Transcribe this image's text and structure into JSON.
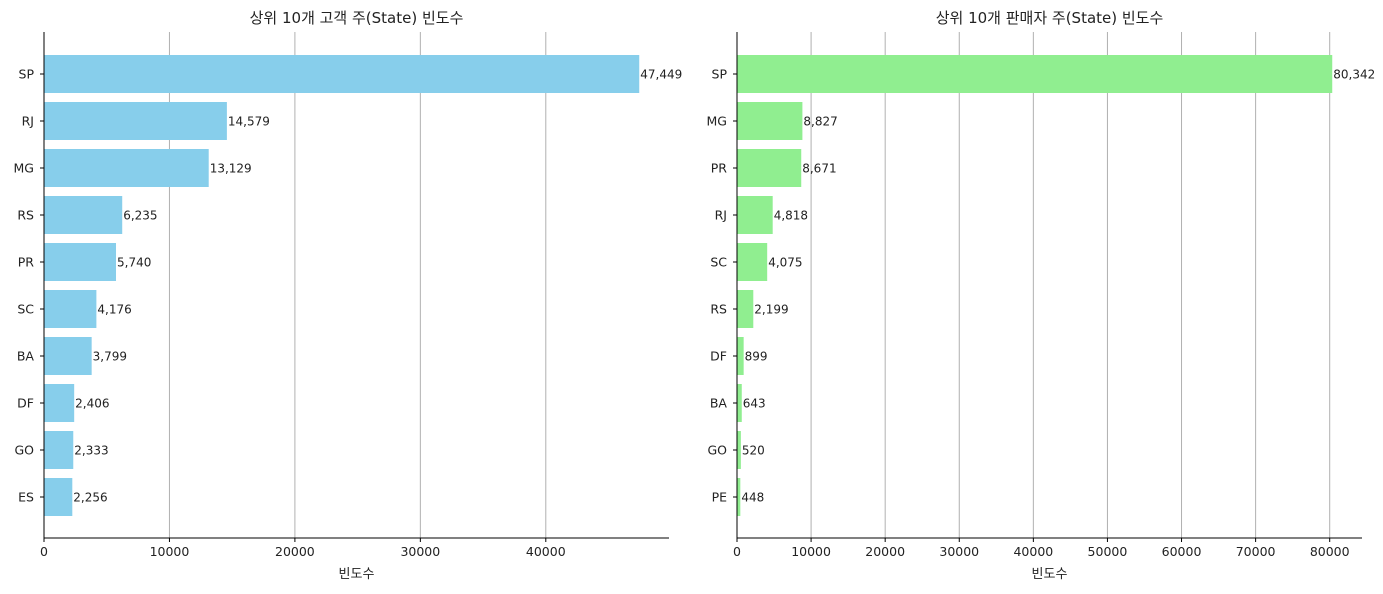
{
  "chart_data": [
    {
      "type": "bar",
      "orientation": "horizontal",
      "title": "상위 10개 고객 주(State) 빈도수",
      "xlabel": "빈도수",
      "ylabel": "",
      "categories": [
        "SP",
        "RJ",
        "MG",
        "RS",
        "PR",
        "SC",
        "BA",
        "DF",
        "GO",
        "ES"
      ],
      "values": [
        47449,
        14579,
        13129,
        6235,
        5740,
        4176,
        3799,
        2406,
        2333,
        2256
      ],
      "value_labels": [
        "47,449",
        "14,579",
        "13,129",
        "6,235",
        "5,740",
        "4,176",
        "3,799",
        "2,406",
        "2,333",
        "2,256"
      ],
      "xlim": [
        0,
        49821
      ],
      "xticks": [
        0,
        10000,
        20000,
        30000,
        40000
      ],
      "xtick_labels": [
        "0",
        "10000",
        "20000",
        "30000",
        "40000"
      ],
      "grid": "x",
      "color": "#87ceeb"
    },
    {
      "type": "bar",
      "orientation": "horizontal",
      "title": "상위 10개 판매자 주(State) 빈도수",
      "xlabel": "빈도수",
      "ylabel": "",
      "categories": [
        "SP",
        "MG",
        "PR",
        "RJ",
        "SC",
        "RS",
        "DF",
        "BA",
        "GO",
        "PE"
      ],
      "values": [
        80342,
        8827,
        8671,
        4818,
        4075,
        2199,
        899,
        643,
        520,
        448
      ],
      "value_labels": [
        "80,342",
        "8,827",
        "8,671",
        "4,818",
        "4,075",
        "2,199",
        "899",
        "643",
        "520",
        "448"
      ],
      "xlim": [
        0,
        84359
      ],
      "xticks": [
        0,
        10000,
        20000,
        30000,
        40000,
        50000,
        60000,
        70000,
        80000
      ],
      "xtick_labels": [
        "0",
        "10000",
        "20000",
        "30000",
        "40000",
        "50000",
        "60000",
        "70000",
        "80000"
      ],
      "grid": "x",
      "color": "#90ee90"
    }
  ]
}
